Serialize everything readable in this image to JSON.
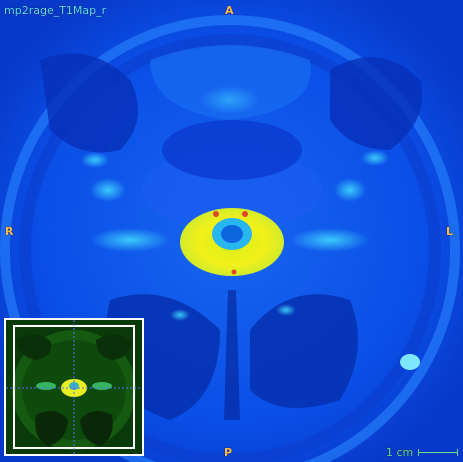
{
  "viewer": {
    "series_name": "mp2rage_T1Map_r",
    "orientation": {
      "top": "A",
      "bottom": "P",
      "left": "R",
      "right": "L"
    },
    "scale_bar_label": "1 cm"
  },
  "colors": {
    "background": "#0a45e6",
    "series_text": "#59e0ff",
    "orientation_text": "#ffb84a",
    "scale_bar": "#59e08a",
    "cord": "#f2f01a",
    "thumbnail_frame": "#ffffff",
    "thumbnail_crosshair": "#5a6cff"
  },
  "icons": {
    "scale": "scale-bar-icon"
  }
}
